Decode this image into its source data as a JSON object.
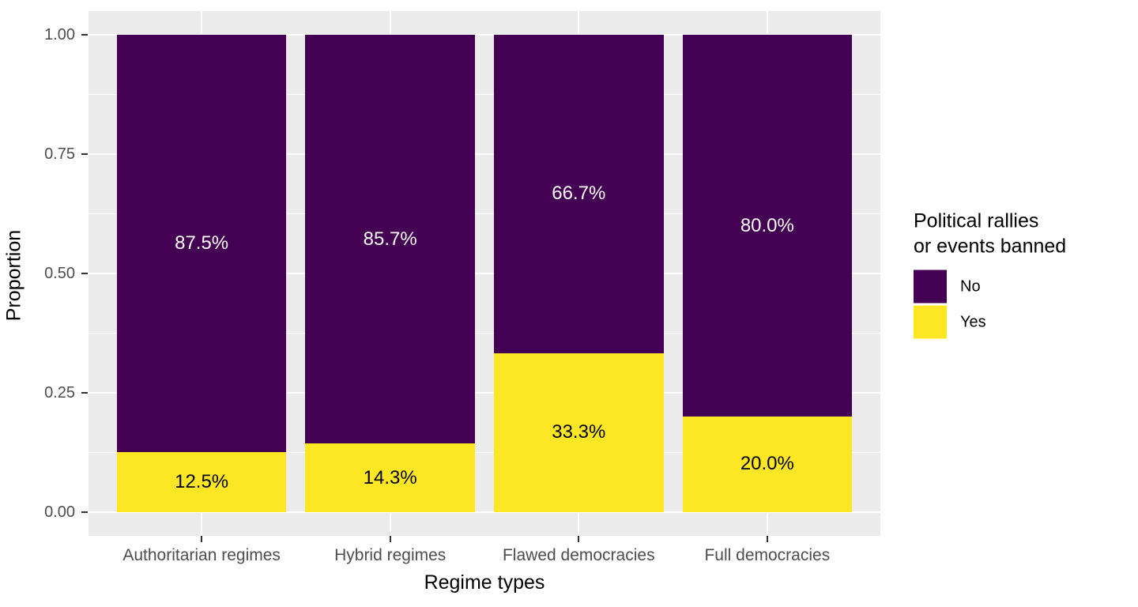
{
  "figure": {
    "background": "#FFFFFF",
    "panel_background": "#EBEBEB",
    "grid_color": "#FFFFFF",
    "tick_mark_color": "#333333",
    "tick_label_color": "#4D4D4D",
    "text_color": "#000000"
  },
  "chart_data": {
    "type": "bar",
    "stacked": true,
    "stack_from_top": true,
    "title": "",
    "xlabel": "Regime types",
    "ylabel": "Proportion",
    "categories": [
      "Authoritarian regimes",
      "Hybrid regimes",
      "Flawed democracies",
      "Full democracies"
    ],
    "series": [
      {
        "name": "No",
        "color": "#440154",
        "label_color": "#FFFFFF",
        "values": [
          0.875,
          0.857,
          0.667,
          0.8
        ],
        "labels": [
          "87.5%",
          "85.7%",
          "66.7%",
          "80.0%"
        ]
      },
      {
        "name": "Yes",
        "color": "#FDE725",
        "label_color": "#000000",
        "values": [
          0.125,
          0.143,
          0.333,
          0.2
        ],
        "labels": [
          "12.5%",
          "14.3%",
          "33.3%",
          "20.0%"
        ]
      }
    ],
    "ylim": [
      0,
      1
    ],
    "y_ticks": [
      "0.00",
      "0.25",
      "0.50",
      "0.75",
      "1.00"
    ],
    "y_minor_ticks": [
      0.125,
      0.375,
      0.625,
      0.875
    ],
    "grid": true,
    "bar_width_fraction": 0.9,
    "legend": {
      "title": "Political rallies\nor events banned",
      "position": "right",
      "entries": [
        {
          "label": "No",
          "color": "#440154"
        },
        {
          "label": "Yes",
          "color": "#FDE725"
        }
      ]
    }
  }
}
